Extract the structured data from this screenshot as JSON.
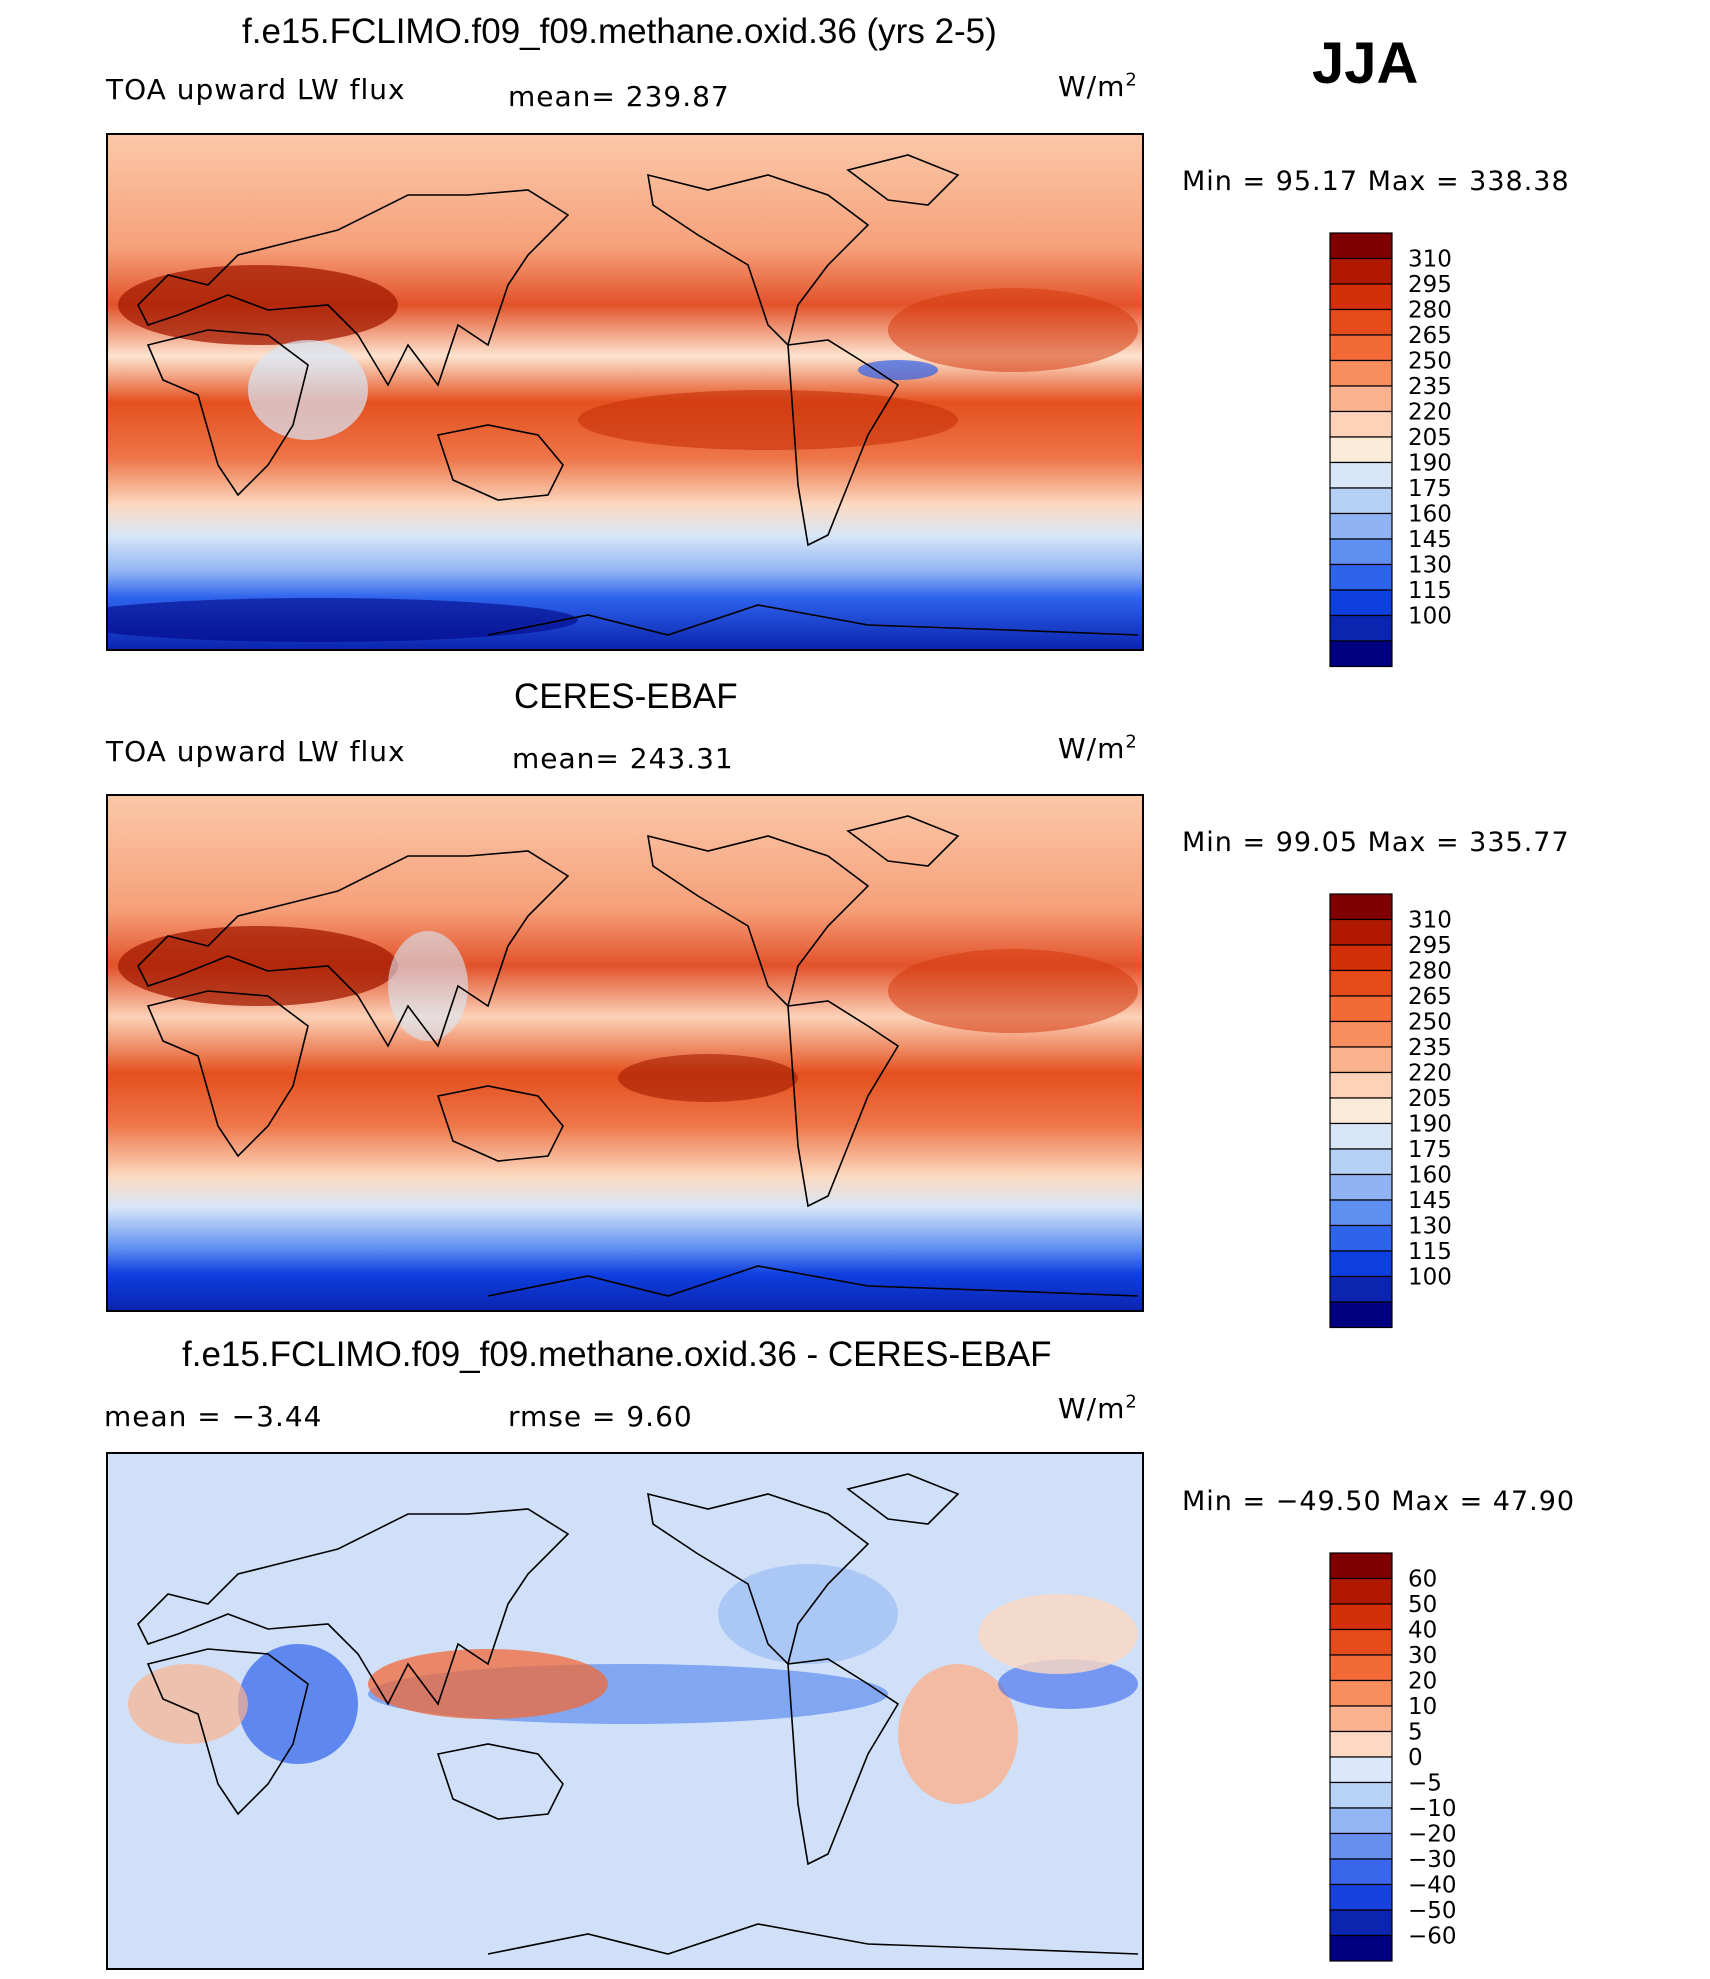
{
  "season": "JJA",
  "chart_data": [
    {
      "type": "heatmap",
      "title": "f.e15.FCLIMO.f09_f09.methane.oxid.36 (yrs 2-5)",
      "variable": "TOA upward LW flux",
      "stat_text": "mean=  239.87",
      "units_base": "W/m",
      "units_exp": "2",
      "min_text": "Min  =    95.17  Max  =  338.38",
      "min": 95.17,
      "max": 338.38,
      "mean": 239.87,
      "colorbar_levels": [
        "310",
        "295",
        "280",
        "265",
        "250",
        "235",
        "220",
        "205",
        "190",
        "175",
        "160",
        "145",
        "130",
        "115",
        "100"
      ],
      "colorbar_colors": [
        "#7f0000",
        "#b01800",
        "#d32f0a",
        "#e54a1a",
        "#f26a38",
        "#f88d5e",
        "#fbb28f",
        "#fdd2b8",
        "#fcebd8",
        "#d7e7f8",
        "#b6d0f6",
        "#8fb3f3",
        "#5f8ff0",
        "#2e63ec",
        "#0e3fe0",
        "#0b25b0",
        "#000080"
      ]
    },
    {
      "type": "heatmap",
      "title": "CERES-EBAF",
      "variable": "TOA upward LW flux",
      "stat_text": "mean=  243.31",
      "units_base": "W/m",
      "units_exp": "2",
      "min_text": "Min  =    99.05  Max  =  335.77",
      "min": 99.05,
      "max": 335.77,
      "mean": 243.31,
      "colorbar_levels": [
        "310",
        "295",
        "280",
        "265",
        "250",
        "235",
        "220",
        "205",
        "190",
        "175",
        "160",
        "145",
        "130",
        "115",
        "100"
      ],
      "colorbar_colors": [
        "#7f0000",
        "#b01800",
        "#d32f0a",
        "#e54a1a",
        "#f26a38",
        "#f88d5e",
        "#fbb28f",
        "#fdd2b8",
        "#fcebd8",
        "#d7e7f8",
        "#b6d0f6",
        "#8fb3f3",
        "#5f8ff0",
        "#2e63ec",
        "#0e3fe0",
        "#0b25b0",
        "#000080"
      ]
    },
    {
      "type": "heatmap",
      "title": "f.e15.FCLIMO.f09_f09.methane.oxid.36 - CERES-EBAF",
      "stat_text": "mean  =    −3.44",
      "rmse_text": "rmse  =      9.60",
      "units_base": "W/m",
      "units_exp": "2",
      "min_text": "Min  =  −49.50  Max  =    47.90",
      "min": -49.5,
      "max": 47.9,
      "mean": -3.44,
      "rmse": 9.6,
      "colorbar_levels": [
        "60",
        "50",
        "40",
        "30",
        "20",
        "10",
        "5",
        "0",
        "−5",
        "−10",
        "−20",
        "−30",
        "−40",
        "−50",
        "−60"
      ],
      "colorbar_colors": [
        "#7f0000",
        "#b01800",
        "#d32f0a",
        "#e54a1a",
        "#f26a38",
        "#f88d5e",
        "#fbb28f",
        "#fdd8c2",
        "#dbe8fb",
        "#b9d2f7",
        "#93b6f3",
        "#678ff0",
        "#3a66ec",
        "#1842df",
        "#0b25b0",
        "#000080"
      ]
    }
  ]
}
